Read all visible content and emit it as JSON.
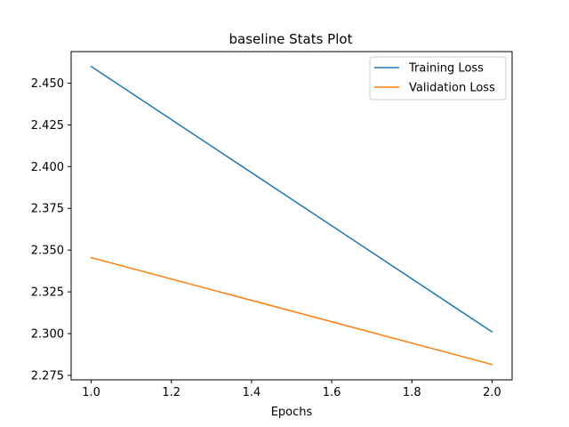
{
  "chart_data": {
    "type": "line",
    "title": "baseline Stats Plot",
    "xlabel": "Epochs",
    "ylabel": "",
    "xlim": [
      0.95,
      2.05
    ],
    "ylim": [
      2.2723,
      2.4689
    ],
    "x_ticks": [
      1.0,
      1.2,
      1.4,
      1.6,
      1.8,
      2.0
    ],
    "x_tick_labels": [
      "1.0",
      "1.2",
      "1.4",
      "1.6",
      "1.8",
      "2.0"
    ],
    "y_ticks": [
      2.275,
      2.3,
      2.325,
      2.35,
      2.375,
      2.4,
      2.425,
      2.45
    ],
    "y_tick_labels": [
      "2.275",
      "2.300",
      "2.325",
      "2.350",
      "2.375",
      "2.400",
      "2.425",
      "2.450"
    ],
    "grid": false,
    "legend_position": "top-right",
    "x": [
      1.0,
      2.0
    ],
    "series": [
      {
        "name": "Training Loss",
        "color": "#1f77b4",
        "values": [
          2.46,
          2.301
        ]
      },
      {
        "name": "Validation Loss",
        "color": "#ff7f0e",
        "values": [
          2.3455,
          2.2815
        ]
      }
    ]
  }
}
